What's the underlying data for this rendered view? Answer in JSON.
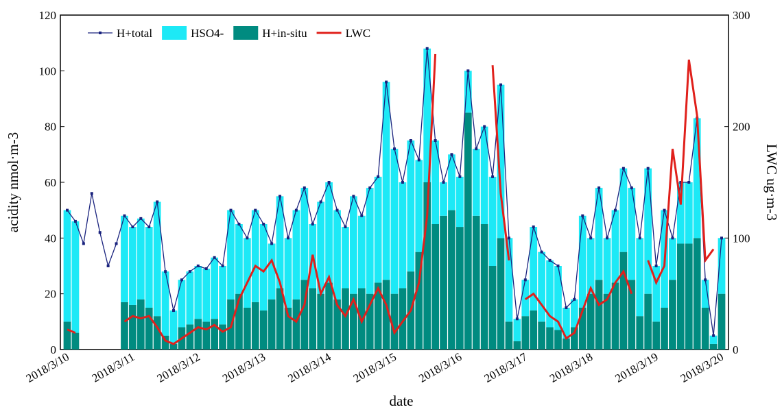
{
  "chart_data": {
    "type": "combo",
    "xlabel": "date",
    "ylabel": "acidity  nmol·m-3",
    "y2label": "LWC  ug·m-3",
    "categories": [
      "2018/3/10",
      null,
      null,
      null,
      null,
      null,
      null,
      null,
      "2018/3/11",
      null,
      null,
      null,
      null,
      null,
      null,
      null,
      "2018/3/12",
      null,
      null,
      null,
      null,
      null,
      null,
      null,
      "2018/3/13",
      null,
      null,
      null,
      null,
      null,
      null,
      null,
      "2018/3/14",
      null,
      null,
      null,
      null,
      null,
      null,
      null,
      "2018/3/15",
      null,
      null,
      null,
      null,
      null,
      null,
      null,
      "2018/3/16",
      null,
      null,
      null,
      null,
      null,
      null,
      null,
      "2018/3/17",
      null,
      null,
      null,
      null,
      null,
      null,
      null,
      "2018/3/18",
      null,
      null,
      null,
      null,
      null,
      null,
      null,
      "2018/3/19",
      null,
      null,
      null,
      null,
      null,
      null,
      null,
      "2018/3/20"
    ],
    "ylim": [
      0,
      120
    ],
    "yticks": [
      0,
      20,
      40,
      60,
      80,
      100,
      120
    ],
    "y2lim": [
      0,
      300
    ],
    "y2ticks": [
      0,
      100,
      200,
      300
    ],
    "legend": "upper left",
    "series": [
      {
        "name": "H+in-situ",
        "type": "bar",
        "color": "#008b80",
        "values": [
          10,
          6,
          null,
          null,
          null,
          null,
          null,
          17,
          16,
          18,
          15,
          12,
          5,
          2,
          8,
          9,
          11,
          10,
          11,
          9,
          18,
          20,
          15,
          17,
          14,
          18,
          22,
          15,
          18,
          25,
          22,
          20,
          24,
          18,
          22,
          20,
          22,
          20,
          24,
          25,
          20,
          22,
          28,
          35,
          60,
          45,
          48,
          50,
          44,
          85,
          48,
          45,
          30,
          40,
          10,
          3,
          12,
          14,
          10,
          8,
          7,
          4,
          8,
          15,
          20,
          25,
          20,
          24,
          35,
          25,
          12,
          20,
          10,
          15,
          25,
          38,
          38,
          40,
          15,
          2,
          20
        ]
      },
      {
        "name": "HSO4-",
        "type": "bar",
        "color": "#1de9f6",
        "values": [
          40,
          40,
          null,
          null,
          null,
          null,
          null,
          31,
          28,
          29,
          29,
          41,
          23,
          12,
          17,
          19,
          19,
          19,
          22,
          21,
          32,
          25,
          25,
          33,
          31,
          20,
          33,
          25,
          32,
          33,
          23,
          33,
          36,
          32,
          22,
          35,
          26,
          38,
          38,
          71,
          52,
          38,
          47,
          33,
          48,
          30,
          12,
          20,
          18,
          15,
          24,
          35,
          32,
          55,
          30,
          8,
          13,
          30,
          25,
          24,
          23,
          11,
          10,
          33,
          20,
          33,
          20,
          26,
          30,
          33,
          28,
          45,
          20,
          35,
          15,
          22,
          22,
          43,
          10,
          3,
          20
        ]
      },
      {
        "name": "H+total",
        "type": "line",
        "color": "#1a237e",
        "values": [
          50,
          46,
          38,
          56,
          42,
          30,
          38,
          48,
          44,
          47,
          44,
          53,
          28,
          14,
          25,
          28,
          30,
          29,
          33,
          30,
          50,
          45,
          40,
          50,
          45,
          38,
          55,
          40,
          50,
          58,
          45,
          53,
          60,
          50,
          44,
          55,
          48,
          58,
          62,
          96,
          72,
          60,
          75,
          68,
          108,
          75,
          60,
          70,
          62,
          100,
          72,
          80,
          62,
          95,
          40,
          11,
          25,
          44,
          35,
          32,
          30,
          15,
          18,
          48,
          40,
          58,
          40,
          50,
          65,
          58,
          40,
          65,
          30,
          50,
          40,
          60,
          60,
          83,
          25,
          5,
          40
        ]
      },
      {
        "name": "LWC",
        "type": "line",
        "axis": "y2",
        "color": "#e0201b",
        "values": [
          18,
          15,
          null,
          null,
          null,
          null,
          null,
          25,
          30,
          28,
          30,
          20,
          8,
          5,
          10,
          15,
          20,
          18,
          22,
          16,
          20,
          45,
          60,
          75,
          70,
          80,
          60,
          30,
          25,
          40,
          85,
          50,
          65,
          40,
          30,
          45,
          25,
          40,
          55,
          40,
          15,
          25,
          35,
          60,
          120,
          265,
          null,
          null,
          null,
          null,
          null,
          null,
          255,
          140,
          80,
          null,
          45,
          50,
          40,
          30,
          25,
          10,
          15,
          35,
          55,
          40,
          45,
          60,
          70,
          50,
          null,
          80,
          60,
          75,
          180,
          130,
          260,
          210,
          80,
          90,
          null
        ]
      }
    ]
  }
}
